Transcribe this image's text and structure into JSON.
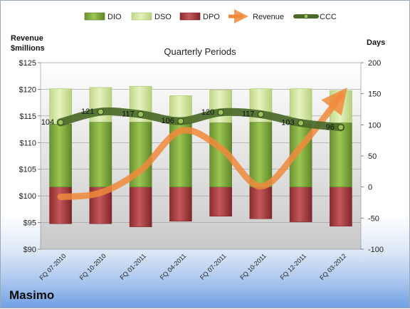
{
  "company": "Masimo",
  "chart_data": {
    "type": "bar",
    "title": "Quarterly Periods",
    "left_axis_label_line1": "Revenue",
    "left_axis_label_line2": "$millions",
    "right_axis_label": "Days",
    "categories": [
      "FQ 07-2010",
      "FQ 10-2010",
      "FQ 01-2011",
      "FQ 04-2011",
      "FQ 07-2011",
      "FQ 10-2011",
      "FQ 12-2011",
      "FQ 03-2012"
    ],
    "left_axis": {
      "min": 90,
      "max": 125,
      "step": 5,
      "tick_labels": [
        "$90",
        "$95",
        "$100",
        "$105",
        "$110",
        "$115",
        "$120",
        "$125"
      ]
    },
    "right_axis": {
      "min": -100,
      "max": 200,
      "step": 50,
      "tick_labels": [
        "-100",
        "-50",
        "0",
        "50",
        "100",
        "150",
        "200"
      ]
    },
    "legend": [
      "DIO",
      "DSO",
      "DPO",
      "Revenue",
      "CCC"
    ],
    "legend_position": "top",
    "series": [
      {
        "name": "DIO",
        "axis": "days",
        "type": "bar",
        "values": [
          101,
          104,
          104,
          103,
          103,
          104,
          102,
          103
        ]
      },
      {
        "name": "DSO",
        "axis": "days",
        "type": "bar",
        "values": [
          57,
          56,
          58,
          44,
          53,
          54,
          56,
          52
        ]
      },
      {
        "name": "DPO",
        "axis": "days",
        "type": "bar",
        "values": [
          -59,
          -59,
          -64,
          -55,
          -47,
          -51,
          -56,
          -63
        ]
      },
      {
        "name": "Revenue",
        "axis": "revenue",
        "type": "line",
        "values": [
          99.8,
          100.6,
          104.8,
          112.2,
          109.0,
          101.8,
          109.2,
          118.8
        ]
      },
      {
        "name": "CCC",
        "axis": "days",
        "type": "line",
        "values": [
          104,
          121,
          117,
          106,
          120,
          117,
          103,
          96
        ],
        "labels": [
          "104",
          "121",
          "117",
          "106",
          "120",
          "117",
          "103",
          "96"
        ]
      }
    ],
    "colors": {
      "DIO": "#7ea83a",
      "DSO": "#d3e79d",
      "DPO": "#a53a3d",
      "Revenue": "#f0893c",
      "CCC": "#4b6a29"
    }
  }
}
